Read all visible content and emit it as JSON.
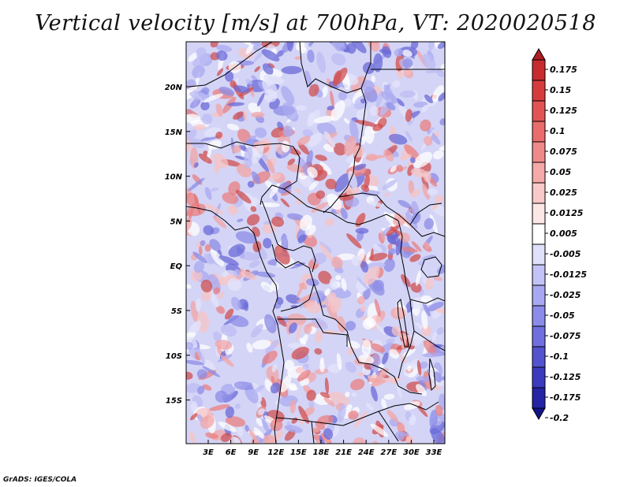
{
  "title": "Vertical velocity [m/s] at 700hPa, VT: 2020020518",
  "footer": "GrADS: IGES/COLA",
  "map": {
    "lat_labels": [
      "20N",
      "15N",
      "10N",
      "5N",
      "EQ",
      "5S",
      "10S",
      "15S"
    ],
    "lon_labels": [
      "3E",
      "6E",
      "9E",
      "12E",
      "15E",
      "18E",
      "21E",
      "24E",
      "27E",
      "30E",
      "33E"
    ],
    "field": "Vertical velocity",
    "level": "700hPa",
    "valid_time": "2020020518"
  },
  "colorbar": {
    "labels": [
      "0.175",
      "0.15",
      "0.125",
      "0.1",
      "0.075",
      "0.05",
      "0.025",
      "0.0125",
      "0.005",
      "-0.005",
      "-0.0125",
      "-0.025",
      "-0.05",
      "-0.075",
      "-0.1",
      "-0.125",
      "-0.175",
      "-0.2"
    ],
    "colors": [
      "#b01e22",
      "#c72b2e",
      "#d83b3b",
      "#e25454",
      "#ea6c6c",
      "#f08a8a",
      "#f5a9a9",
      "#f9c8c8",
      "#fde6e6",
      "#ffffff",
      "#e0e0fb",
      "#c3c3f7",
      "#a8a8f2",
      "#8b8bea",
      "#6f6fdf",
      "#5353d0",
      "#3b3bbf",
      "#2424a6",
      "#14148a"
    ]
  }
}
